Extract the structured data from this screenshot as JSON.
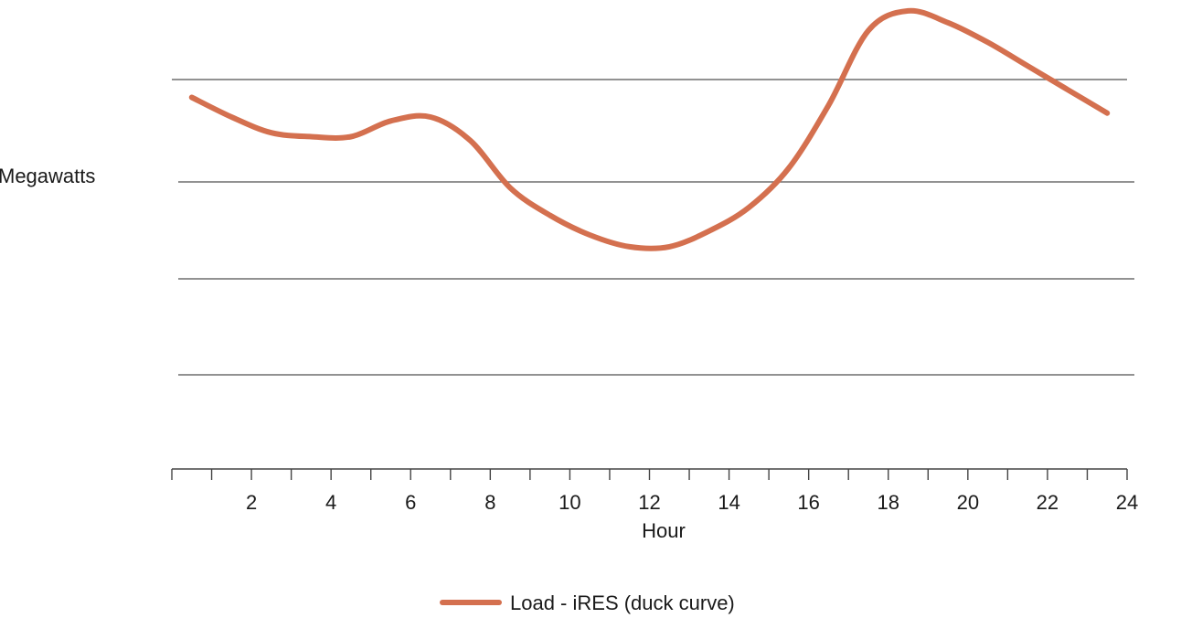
{
  "chart_data": {
    "type": "line",
    "title": "",
    "xlabel": "Hour",
    "ylabel": "Megawatts",
    "xlim": [
      0,
      24
    ],
    "x_ticks": [
      2,
      4,
      6,
      8,
      10,
      12,
      14,
      16,
      18,
      20,
      22,
      24
    ],
    "x_tick_labels": [
      "2",
      "4",
      "6",
      "8",
      "10",
      "12",
      "14",
      "16",
      "18",
      "20",
      "22",
      "24"
    ],
    "y_ticks_labeled": false,
    "grid": "horizontal",
    "legend_position": "bottom-center",
    "series": [
      {
        "name": "Load - iRES (duck curve)",
        "color": "#d4704f",
        "x": [
          0.5,
          1.5,
          2.5,
          3.5,
          4.5,
          5.5,
          6.5,
          7.5,
          8.5,
          9.5,
          10.5,
          11.5,
          12.5,
          13.5,
          14.5,
          15.5,
          16.5,
          17.5,
          18.5,
          19.5,
          20.5,
          21.5,
          22.5,
          23.5
        ],
        "values": [
          4.75,
          4.5,
          4.3,
          4.25,
          4.25,
          4.45,
          4.5,
          4.2,
          3.6,
          3.25,
          3.0,
          2.85,
          2.85,
          3.05,
          3.35,
          3.85,
          4.65,
          5.6,
          5.85,
          5.7,
          5.45,
          5.15,
          4.85,
          4.55
        ]
      }
    ],
    "ylim": [
      0,
      6
    ]
  }
}
